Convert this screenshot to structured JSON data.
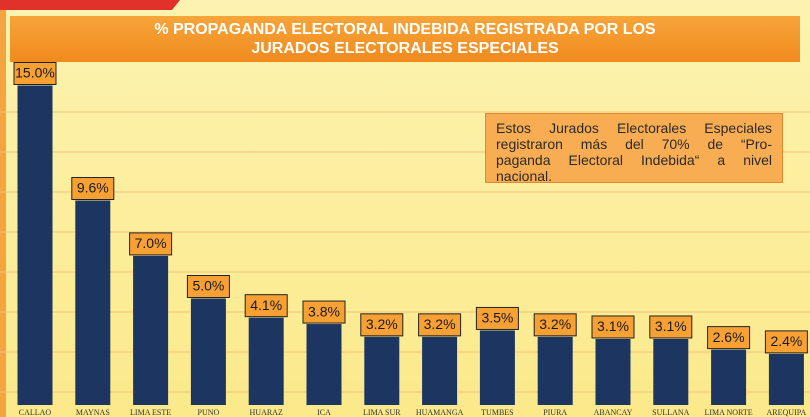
{
  "chart_data": {
    "type": "bar",
    "title": "% PROPAGANDA ELECTORAL INDEBIDA REGISTRADA POR LOS\nJURADOS ELECTORALES ESPECIALES",
    "annotation": [
      "Estos Jurados Electorales Especiales",
      "registraron más del 70% de “Pro-",
      "paganda Electoral Indebida“ a nivel",
      "nacional."
    ],
    "categories": [
      "CALLAO",
      "MAYNAS",
      "LIMA ESTE",
      "PUNO",
      "HUARAZ",
      "ICA",
      "LIMA SUR",
      "HUAMANGA",
      "TUMBES",
      "PIURA",
      "ABANCAY",
      "SULLANA",
      "LIMA NORTE",
      "AREQUIPA"
    ],
    "values": [
      15.0,
      9.6,
      7.0,
      5.0,
      4.1,
      3.8,
      3.2,
      3.2,
      3.5,
      3.2,
      3.1,
      3.1,
      2.6,
      2.4
    ],
    "value_labels": [
      "15.0%",
      "9.6%",
      "7.0%",
      "5.0%",
      "4.1%",
      "3.8%",
      "3.2%",
      "3.2%",
      "3.5%",
      "3.2%",
      "3.1%",
      "3.1%",
      "2.6%",
      "2.4%"
    ],
    "color": "#1c3561"
  }
}
